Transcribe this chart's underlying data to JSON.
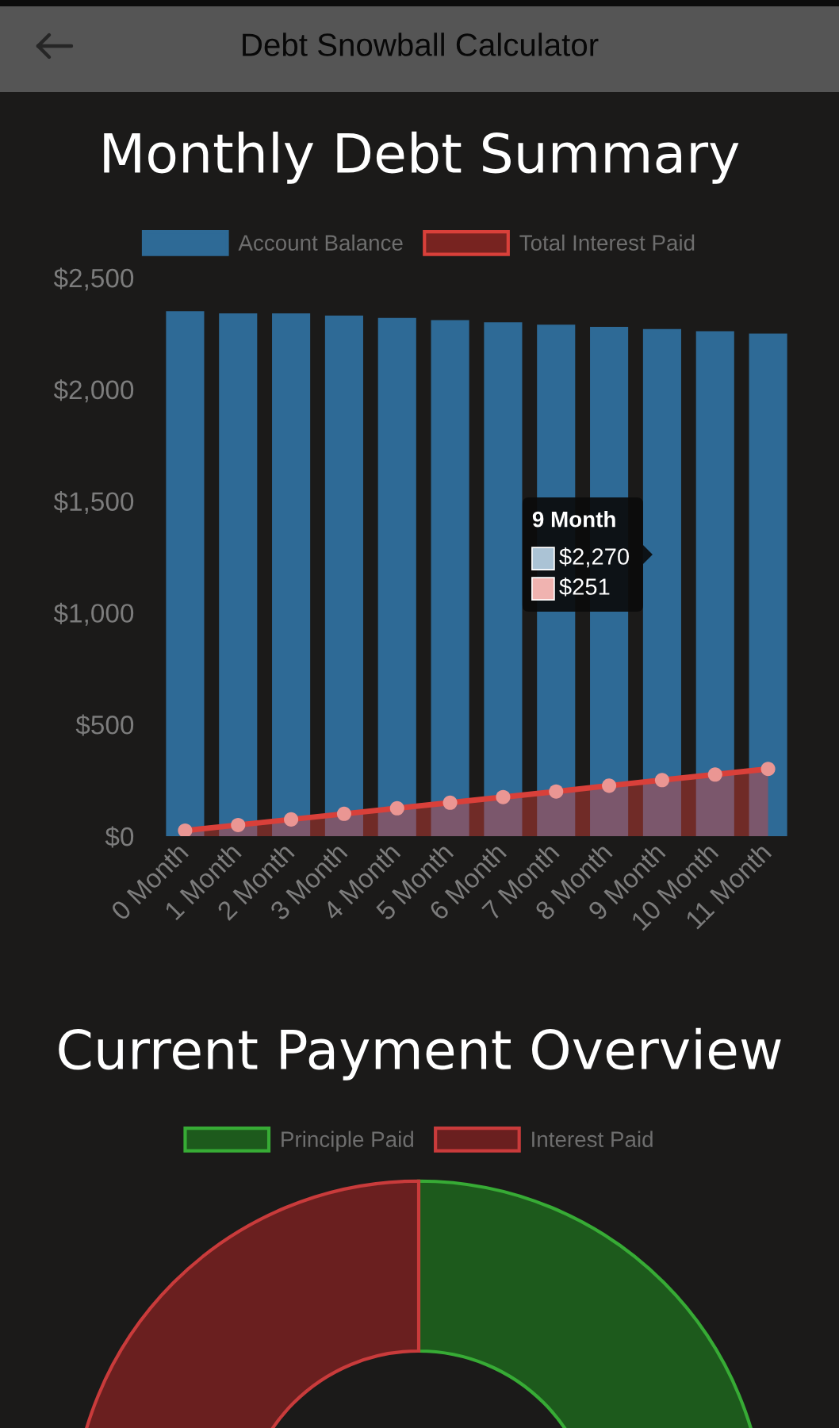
{
  "chart_data": [
    {
      "type": "bar",
      "title": "Monthly Debt Summary",
      "categories": [
        "0 Month",
        "1 Month",
        "2 Month",
        "3 Month",
        "4 Month",
        "5 Month",
        "6 Month",
        "7 Month",
        "8 Month",
        "9 Month",
        "10 Month",
        "11 Month"
      ],
      "series": [
        {
          "name": "Account Balance",
          "type": "bar",
          "color": "#2e6a96",
          "values": [
            2350,
            2340,
            2340,
            2330,
            2320,
            2310,
            2300,
            2290,
            2280,
            2270,
            2260,
            2250
          ]
        },
        {
          "name": "Total Interest Paid",
          "type": "area",
          "color": "#d9403a",
          "values": [
            25,
            50,
            75,
            100,
            125,
            150,
            175,
            200,
            226,
            251,
            276,
            301
          ]
        }
      ],
      "ylim": [
        0,
        2500
      ],
      "yticks": [
        {
          "value": 0,
          "label": "$0"
        },
        {
          "value": 500,
          "label": "$500"
        },
        {
          "value": 1000,
          "label": "$1,000"
        },
        {
          "value": 1500,
          "label": "$1,500"
        },
        {
          "value": 2000,
          "label": "$2,000"
        },
        {
          "value": 2500,
          "label": "$2,500"
        }
      ],
      "grid": false,
      "legend": "top",
      "marker": "circle",
      "annotations": [
        "Debt Snowball Calculator",
        "9 Month",
        "$2,270",
        "$251"
      ]
    },
    {
      "type": "donut",
      "title": "Current Payment Overview",
      "categories": [
        "Principle Paid",
        "Interest Paid"
      ],
      "values": [
        50,
        50
      ],
      "colors": [
        "#1d5a1c",
        "#6a1f1f"
      ],
      "legend": "top"
    }
  ]
}
